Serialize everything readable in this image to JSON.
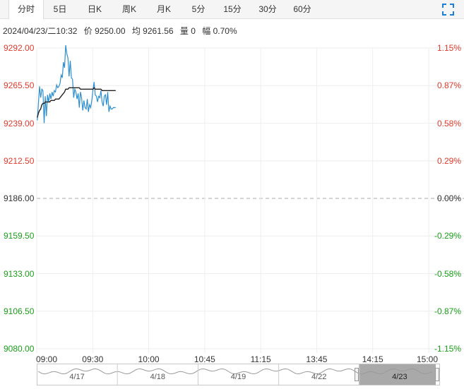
{
  "tabs": [
    "分时",
    "5日",
    "日K",
    "周K",
    "月K",
    "5分",
    "15分",
    "30分",
    "60分"
  ],
  "active_tab": 0,
  "info": {
    "datetime": "2024/04/23/二10:32",
    "price": "价 9250.00",
    "avg": "均 9261.56",
    "volume": "量 0",
    "amplitude": "幅 0.70%"
  },
  "colors": {
    "up": "#e03b2d",
    "down": "#1a9e1a",
    "neutral": "#333333",
    "price_line": "#2d8fd0",
    "avg_line": "#222222",
    "grid": "#eeeeee",
    "accent": "#1a7fd8"
  },
  "chart_data": {
    "type": "line",
    "prev_close": 9186.0,
    "ylim": [
      9080.0,
      9292.0
    ],
    "y_ticks": [
      "9292.00",
      "9265.50",
      "9239.00",
      "9212.50",
      "9186.00",
      "9159.50",
      "9133.00",
      "9106.50",
      "9080.00"
    ],
    "pct_ticks": [
      "1.15%",
      "0.87%",
      "0.58%",
      "0.29%",
      "0.00%",
      "-0.29%",
      "-0.58%",
      "-0.87%",
      "-1.15%"
    ],
    "x_ticks": [
      "09:00",
      "09:30",
      "10:00",
      "10:45",
      "11:15",
      "13:45",
      "14:15",
      "15:00"
    ],
    "session_minutes": 345,
    "series": [
      {
        "values": [
          9241,
          9253,
          9265,
          9257,
          9263,
          9262,
          9239,
          9258,
          9244,
          9259,
          9254,
          9260,
          9256,
          9261,
          9258,
          9262,
          9261,
          9266,
          9264,
          9265,
          9267,
          9273,
          9271,
          9282,
          9278,
          9294,
          9288,
          9285,
          9272,
          9283,
          9271,
          9270,
          9257,
          9263,
          9261,
          9256,
          9260,
          9250,
          9261,
          9257,
          9248,
          9255,
          9250,
          9249,
          9256,
          9247,
          9252,
          9250,
          9255,
          9262,
          9268,
          9259,
          9258,
          9254,
          9258,
          9257,
          9262,
          9254,
          9251,
          9258,
          9259,
          9252,
          9261,
          9247,
          9251,
          9249,
          9249,
          9250,
          9250,
          9250
        ]
      },
      {
        "values": [
          9243,
          9246,
          9248,
          9249,
          9252,
          9253,
          9253,
          9254,
          9254,
          9254,
          9254,
          9254,
          9255,
          9255,
          9255,
          9255,
          9256,
          9256,
          9256,
          9256,
          9257,
          9258,
          9259,
          9260,
          9261,
          9263,
          9263,
          9263,
          9264,
          9264,
          9264,
          9264,
          9264,
          9264,
          9264,
          9264,
          9264,
          9264,
          9263,
          9263,
          9263,
          9263,
          9263,
          9263,
          9263,
          9263,
          9263,
          9263,
          9263,
          9263,
          9264,
          9263,
          9263,
          9263,
          9263,
          9263,
          9263,
          9262,
          9262,
          9262,
          9262,
          9262,
          9262,
          9262,
          9262,
          9262,
          9262,
          9262,
          9262,
          9262
        ]
      }
    ]
  },
  "navigator": {
    "dates": [
      "4/17",
      "4/18",
      "4/19",
      "4/22",
      "4/23"
    ]
  }
}
